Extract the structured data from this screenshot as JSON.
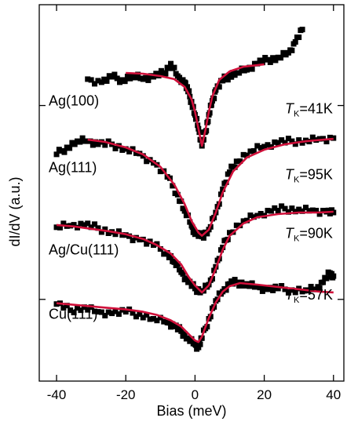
{
  "chart_data": {
    "type": "scatter",
    "xlabel": "Bias (meV)",
    "ylabel": "dI/dV (a.u.)",
    "xlim": [
      -45,
      43
    ],
    "ylim": [
      0,
      542
    ],
    "x_ticks": [
      -40,
      -20,
      0,
      20,
      40
    ],
    "x_tick_labels": [
      "-40",
      "-20",
      "0",
      "20",
      "40"
    ],
    "y_ticks": [
      130,
      380
    ],
    "grid": false,
    "series": [
      {
        "name": "Ag(100)",
        "tk_label": "41K",
        "data_points": [
          [
            -31,
            96
          ],
          [
            -27,
            100
          ],
          [
            -24,
            93
          ],
          [
            -21,
            97
          ],
          [
            -18,
            92
          ],
          [
            -15,
            96
          ],
          [
            -12,
            93
          ],
          [
            -9,
            88
          ],
          [
            -7,
            76
          ],
          [
            -5,
            92
          ],
          [
            -3,
            100
          ],
          [
            -2,
            112
          ],
          [
            -1,
            125
          ],
          [
            0,
            142
          ],
          [
            1,
            160
          ],
          [
            2,
            182
          ],
          [
            3,
            164
          ],
          [
            4,
            142
          ],
          [
            5,
            124
          ],
          [
            6,
            110
          ],
          [
            8,
            98
          ],
          [
            10,
            91
          ],
          [
            12,
            88
          ],
          [
            15,
            84
          ],
          [
            18,
            76
          ],
          [
            21,
            71
          ],
          [
            24,
            68
          ],
          [
            27,
            62
          ],
          [
            29,
            48
          ],
          [
            31,
            32
          ]
        ],
        "fit": [
          [
            -20,
            88
          ],
          [
            -15,
            89
          ],
          [
            -10,
            92
          ],
          [
            -6,
            96
          ],
          [
            -3,
            106
          ],
          [
            -1,
            122
          ],
          [
            0,
            138
          ],
          [
            1,
            160
          ],
          [
            2,
            182
          ],
          [
            3,
            162
          ],
          [
            4,
            138
          ],
          [
            5,
            118
          ],
          [
            7,
            97
          ],
          [
            10,
            86
          ],
          [
            14,
            80
          ],
          [
            18,
            78
          ],
          [
            20,
            77
          ]
        ]
      },
      {
        "name": "Ag(111)",
        "tk_label": "95K",
        "data_points": [
          [
            -40,
            193
          ],
          [
            -37,
            184
          ],
          [
            -34,
            176
          ],
          [
            -31,
            176
          ],
          [
            -28,
            180
          ],
          [
            -24,
            180
          ],
          [
            -20,
            186
          ],
          [
            -16,
            192
          ],
          [
            -12,
            204
          ],
          [
            -8,
            222
          ],
          [
            -5,
            245
          ],
          [
            -3,
            266
          ],
          [
            -1,
            285
          ],
          [
            0,
            296
          ],
          [
            2,
            299
          ],
          [
            4,
            290
          ],
          [
            6,
            268
          ],
          [
            8,
            238
          ],
          [
            10,
            216
          ],
          [
            12,
            202
          ],
          [
            16,
            189
          ],
          [
            20,
            183
          ],
          [
            24,
            178
          ],
          [
            28,
            176
          ],
          [
            32,
            175
          ],
          [
            36,
            173
          ],
          [
            40,
            172
          ]
        ],
        "fit": [
          [
            -31,
            174
          ],
          [
            -26,
            177
          ],
          [
            -20,
            184
          ],
          [
            -15,
            193
          ],
          [
            -10,
            209
          ],
          [
            -6,
            232
          ],
          [
            -3,
            257
          ],
          [
            -1,
            279
          ],
          [
            1,
            294
          ],
          [
            2,
            298
          ],
          [
            4,
            290
          ],
          [
            6,
            268
          ],
          [
            8,
            242
          ],
          [
            11,
            215
          ],
          [
            15,
            197
          ],
          [
            20,
            187
          ],
          [
            26,
            180
          ],
          [
            32,
            176
          ],
          [
            40,
            173
          ]
        ]
      },
      {
        "name": "Ag/Cu(111)",
        "tk_label": "90K",
        "data_points": [
          [
            -40,
            287
          ],
          [
            -36,
            285
          ],
          [
            -32,
            284
          ],
          [
            -28,
            288
          ],
          [
            -24,
            293
          ],
          [
            -20,
            297
          ],
          [
            -16,
            303
          ],
          [
            -12,
            310
          ],
          [
            -8,
            320
          ],
          [
            -6,
            332
          ],
          [
            -4,
            345
          ],
          [
            -2,
            358
          ],
          [
            0,
            366
          ],
          [
            2,
            369
          ],
          [
            4,
            361
          ],
          [
            6,
            338
          ],
          [
            8,
            313
          ],
          [
            10,
            294
          ],
          [
            14,
            279
          ],
          [
            18,
            272
          ],
          [
            22,
            266
          ],
          [
            26,
            263
          ],
          [
            30,
            264
          ],
          [
            34,
            265
          ],
          [
            38,
            267
          ],
          [
            40,
            268
          ]
        ],
        "fit": [
          [
            -40,
            284
          ],
          [
            -35,
            286
          ],
          [
            -30,
            289
          ],
          [
            -25,
            292
          ],
          [
            -20,
            296
          ],
          [
            -15,
            302
          ],
          [
            -11,
            310
          ],
          [
            -7,
            321
          ],
          [
            -4,
            335
          ],
          [
            -2,
            350
          ],
          [
            0,
            362
          ],
          [
            2,
            371
          ],
          [
            4,
            362
          ],
          [
            6,
            340
          ],
          [
            8,
            316
          ],
          [
            10,
            298
          ],
          [
            14,
            282
          ],
          [
            18,
            274
          ],
          [
            24,
            270
          ],
          [
            30,
            268
          ],
          [
            36,
            268
          ],
          [
            40,
            267
          ]
        ]
      },
      {
        "name": "Cu(111)",
        "tk_label": "57K",
        "data_points": [
          [
            -40,
            386
          ],
          [
            -36,
            394
          ],
          [
            -32,
            390
          ],
          [
            -28,
            396
          ],
          [
            -24,
            398
          ],
          [
            -20,
            396
          ],
          [
            -16,
            399
          ],
          [
            -12,
            405
          ],
          [
            -8,
            410
          ],
          [
            -6,
            415
          ],
          [
            -4,
            421
          ],
          [
            -2,
            430
          ],
          [
            0,
            438
          ],
          [
            1,
            442
          ],
          [
            2,
            430
          ],
          [
            4,
            405
          ],
          [
            6,
            382
          ],
          [
            8,
            370
          ],
          [
            10,
            360
          ],
          [
            12,
            358
          ],
          [
            15,
            360
          ],
          [
            18,
            364
          ],
          [
            21,
            367
          ],
          [
            24,
            366
          ],
          [
            28,
            368
          ],
          [
            32,
            368
          ],
          [
            35,
            367
          ],
          [
            37,
            358
          ],
          [
            39,
            346
          ],
          [
            40,
            350
          ]
        ],
        "fit": [
          [
            -40,
            385
          ],
          [
            -35,
            387
          ],
          [
            -30,
            389
          ],
          [
            -25,
            391
          ],
          [
            -20,
            393
          ],
          [
            -15,
            396
          ],
          [
            -11,
            400
          ],
          [
            -7,
            407
          ],
          [
            -4,
            415
          ],
          [
            -2,
            424
          ],
          [
            0,
            433
          ],
          [
            1,
            435
          ],
          [
            2,
            428
          ],
          [
            4,
            404
          ],
          [
            6,
            384
          ],
          [
            8,
            370
          ],
          [
            10,
            363
          ],
          [
            13,
            359
          ],
          [
            18,
            361
          ],
          [
            24,
            364
          ],
          [
            30,
            367
          ],
          [
            36,
            370
          ],
          [
            40,
            371
          ]
        ]
      }
    ]
  }
}
